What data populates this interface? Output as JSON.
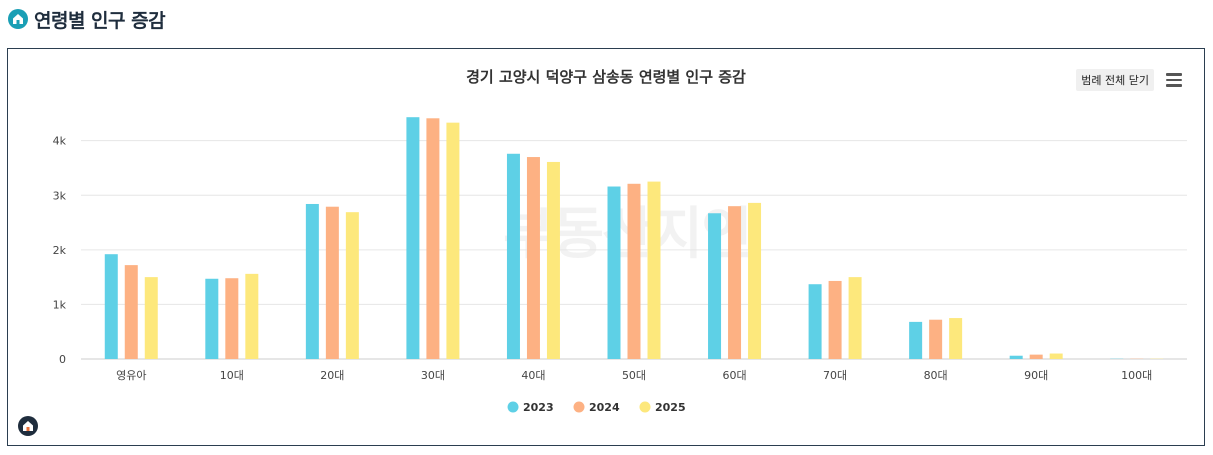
{
  "header": {
    "title": "연령별 인구 증감",
    "icon": "home-icon"
  },
  "legend_toggle_label": "범례 전체 닫기",
  "watermark": "부동산지인",
  "colors": {
    "2023": "#5ed0e6",
    "2024": "#fdb183",
    "2025": "#fde87c"
  },
  "chart_data": {
    "type": "bar",
    "title": "경기 고양시 덕양구 삼송동 연령별 인구 증감",
    "categories": [
      "영유아",
      "10대",
      "20대",
      "30대",
      "40대",
      "50대",
      "60대",
      "70대",
      "80대",
      "90대",
      "100대"
    ],
    "series": [
      {
        "name": "2023",
        "values": [
          1920,
          1470,
          2840,
          4430,
          3760,
          3160,
          2670,
          1370,
          680,
          60,
          5
        ]
      },
      {
        "name": "2024",
        "values": [
          1720,
          1480,
          2790,
          4410,
          3700,
          3210,
          2800,
          1430,
          720,
          80,
          5
        ]
      },
      {
        "name": "2025",
        "values": [
          1500,
          1560,
          2690,
          4330,
          3610,
          3250,
          2860,
          1500,
          750,
          100,
          5
        ]
      }
    ],
    "ylim": [
      0,
      4800
    ],
    "yticks": [
      0,
      1000,
      2000,
      3000,
      4000
    ],
    "ytick_labels": [
      "0",
      "1k",
      "2k",
      "3k",
      "4k"
    ],
    "grid": true,
    "legend": "bottom-center"
  }
}
